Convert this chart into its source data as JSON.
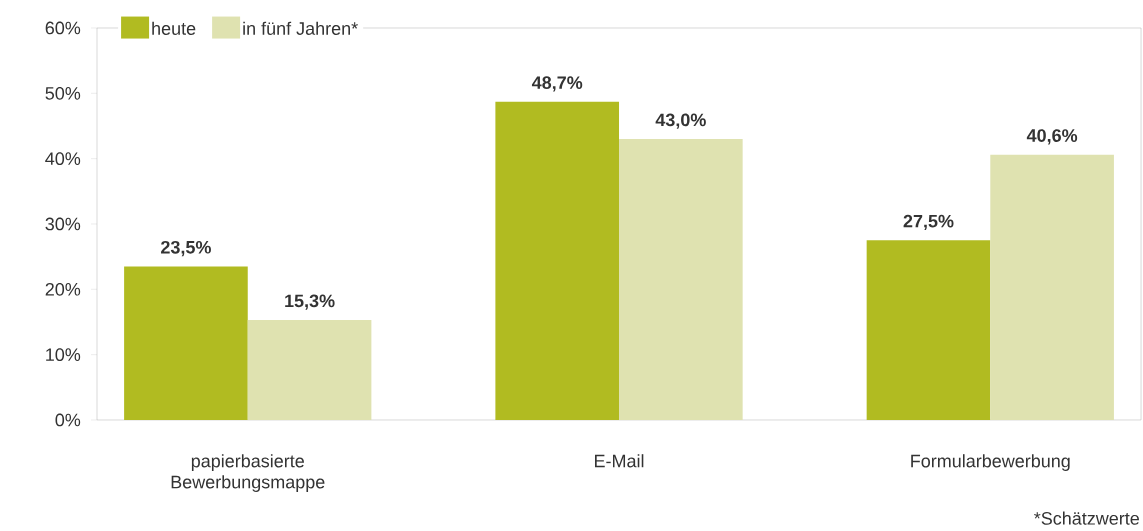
{
  "chart_data": {
    "type": "bar",
    "categories": [
      "papierbasierte Bewerbungsmappe",
      "E-Mail",
      "Formularbewerbung"
    ],
    "series": [
      {
        "name": "heute",
        "color": "#b1bb21",
        "values": [
          23.5,
          48.7,
          27.5
        ],
        "value_labels": [
          "23,5%",
          "48,7%",
          "27,5%"
        ]
      },
      {
        "name": "in fünf Jahren*",
        "color": "#dfe2b0",
        "values": [
          15.3,
          43.0,
          40.6
        ],
        "value_labels": [
          "15,3%",
          "43,0%",
          "40,6%"
        ]
      }
    ],
    "ylim": [
      0,
      60
    ],
    "yticks": [
      {
        "value": 0,
        "label": "0%"
      },
      {
        "value": 10,
        "label": "10%"
      },
      {
        "value": 20,
        "label": "20%"
      },
      {
        "value": 30,
        "label": "30%"
      },
      {
        "value": 40,
        "label": "40%"
      },
      {
        "value": 50,
        "label": "50%"
      },
      {
        "value": 60,
        "label": "60%"
      }
    ],
    "grid": false,
    "legend": "top left",
    "annotations": [
      "*Schätzwerte"
    ]
  }
}
